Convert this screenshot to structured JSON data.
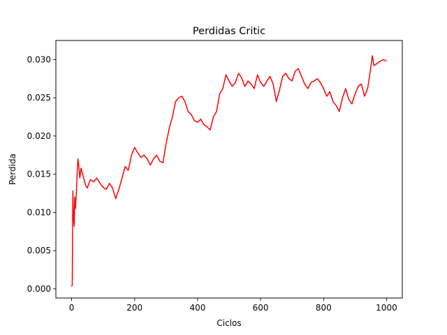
{
  "chart_data": {
    "type": "line",
    "title": "Perdidas Critic",
    "xlabel": "Ciclos",
    "ylabel": "Perdida",
    "xlim": [
      -50,
      1050
    ],
    "ylim": [
      -0.0012,
      0.0325
    ],
    "xticks": [
      0,
      200,
      400,
      600,
      800,
      1000
    ],
    "xtick_labels": [
      "0",
      "200",
      "400",
      "600",
      "800",
      "1000"
    ],
    "yticks": [
      0.0,
      0.005,
      0.01,
      0.015,
      0.02,
      0.025,
      0.03
    ],
    "ytick_labels": [
      "0.000",
      "0.005",
      "0.010",
      "0.015",
      "0.020",
      "0.025",
      "0.030"
    ],
    "grid": false,
    "series": [
      {
        "color": "#ff0000",
        "x": [
          0,
          2,
          4,
          6,
          8,
          10,
          12,
          15,
          18,
          20,
          23,
          26,
          30,
          35,
          40,
          45,
          50,
          55,
          60,
          70,
          80,
          90,
          100,
          110,
          120,
          130,
          135,
          140,
          150,
          160,
          170,
          180,
          190,
          200,
          210,
          220,
          230,
          240,
          250,
          260,
          270,
          280,
          290,
          300,
          310,
          320,
          330,
          340,
          350,
          360,
          370,
          380,
          390,
          400,
          410,
          420,
          430,
          440,
          450,
          460,
          470,
          480,
          490,
          500,
          510,
          520,
          530,
          540,
          550,
          560,
          570,
          580,
          590,
          600,
          610,
          620,
          630,
          640,
          650,
          660,
          670,
          680,
          690,
          700,
          710,
          720,
          730,
          740,
          750,
          760,
          770,
          780,
          790,
          800,
          810,
          820,
          830,
          840,
          850,
          860,
          870,
          880,
          890,
          900,
          910,
          920,
          930,
          940,
          950,
          955,
          960,
          970,
          980,
          990,
          1000
        ],
        "values": [
          0.0003,
          0.0005,
          0.0128,
          0.0095,
          0.0082,
          0.012,
          0.0105,
          0.0125,
          0.0155,
          0.017,
          0.016,
          0.0145,
          0.0158,
          0.015,
          0.0142,
          0.0135,
          0.0132,
          0.0138,
          0.0143,
          0.014,
          0.0145,
          0.0138,
          0.0133,
          0.013,
          0.0138,
          0.0132,
          0.0125,
          0.0118,
          0.013,
          0.0145,
          0.016,
          0.0155,
          0.0175,
          0.0185,
          0.0178,
          0.0172,
          0.0175,
          0.017,
          0.0162,
          0.017,
          0.0175,
          0.0167,
          0.0165,
          0.019,
          0.021,
          0.0225,
          0.0245,
          0.025,
          0.0252,
          0.0245,
          0.0232,
          0.0228,
          0.022,
          0.0218,
          0.0222,
          0.0215,
          0.0212,
          0.0208,
          0.0225,
          0.0232,
          0.0255,
          0.0262,
          0.028,
          0.0272,
          0.0265,
          0.027,
          0.0282,
          0.0276,
          0.0265,
          0.0272,
          0.0268,
          0.0262,
          0.028,
          0.027,
          0.0265,
          0.0272,
          0.0278,
          0.0268,
          0.0245,
          0.026,
          0.0278,
          0.0282,
          0.0275,
          0.0272,
          0.0285,
          0.0288,
          0.0278,
          0.0268,
          0.0262,
          0.027,
          0.0272,
          0.0275,
          0.027,
          0.0262,
          0.0252,
          0.0258,
          0.0245,
          0.024,
          0.0232,
          0.025,
          0.0262,
          0.0248,
          0.0242,
          0.0255,
          0.0265,
          0.0268,
          0.0252,
          0.0262,
          0.029,
          0.0305,
          0.0292,
          0.0295,
          0.0298,
          0.03,
          0.0298
        ]
      }
    ]
  }
}
